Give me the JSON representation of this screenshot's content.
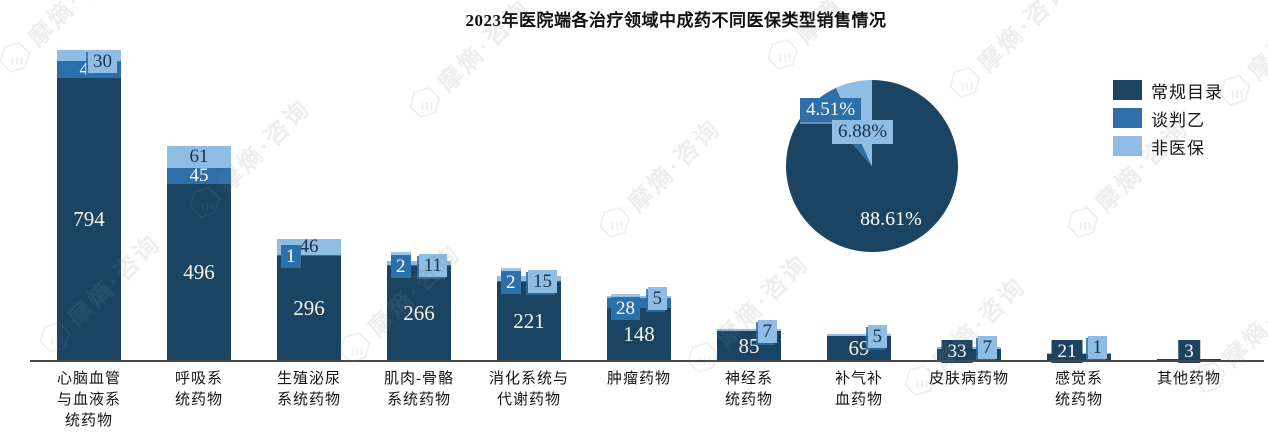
{
  "title": "2023年医院端各治疗领域中成药不同医保类型销售情况",
  "watermark": {
    "text": "摩熵·咨询"
  },
  "colors": {
    "regular": "#1a4462",
    "negotiated": "#2d6fa8",
    "non_insured": "#8fbde3",
    "dark_text": "#15314e",
    "axis": "#474747"
  },
  "legend": {
    "items": [
      {
        "label": "常规目录",
        "key": "regular"
      },
      {
        "label": "谈判乙",
        "key": "negotiated"
      },
      {
        "label": "非医保",
        "key": "non_insured"
      }
    ]
  },
  "pie_labels": {
    "main": "88.61%",
    "negotiated": "4.51%",
    "non_insured": "6.88%"
  },
  "chart_data": [
    {
      "type": "bar",
      "stacked": true,
      "title": "2023年医院端各治疗领域中成药不同医保类型销售情况",
      "categories": [
        "心脑血管与血液系统药物",
        "呼吸系统药物",
        "生殖泌尿系统药物",
        "肌肉-骨骼系统药物",
        "消化系统与代谢药物",
        "肿瘤药物",
        "神经系统药物",
        "补气补血药物",
        "皮肤病药物",
        "感觉系统药物",
        "其他药物"
      ],
      "category_lines": [
        [
          "心脑血管",
          "与血液系",
          "统药物"
        ],
        [
          "呼吸系",
          "统药物"
        ],
        [
          "生殖泌尿",
          "系统药物"
        ],
        [
          "肌肉-骨骼",
          "系统药物"
        ],
        [
          "消化系统与",
          "代谢药物"
        ],
        [
          "肿瘤药物"
        ],
        [
          "神经系",
          "统药物"
        ],
        [
          "补气补",
          "血药物"
        ],
        [
          "皮肤病药物"
        ],
        [
          "感觉系",
          "统药物"
        ],
        [
          "其他药物"
        ]
      ],
      "series": [
        {
          "name": "常规目录",
          "color": "#1a4462",
          "values": [
            794,
            496,
            296,
            266,
            221,
            148,
            85,
            69,
            33,
            21,
            3
          ]
        },
        {
          "name": "谈判乙",
          "color": "#2d6fa8",
          "values": [
            47,
            45,
            1,
            2,
            2,
            28,
            null,
            null,
            null,
            null,
            null
          ]
        },
        {
          "name": "非医保",
          "color": "#8fbde3",
          "values": [
            30,
            61,
            46,
            11,
            15,
            5,
            7,
            5,
            7,
            1,
            null
          ]
        }
      ],
      "ylim": [
        0,
        880
      ],
      "y_axis_visible": false,
      "grid": false,
      "legend_position": "right"
    },
    {
      "type": "pie",
      "labels": [
        "常规目录",
        "谈判乙",
        "非医保"
      ],
      "values": [
        88.61,
        4.51,
        6.88
      ],
      "value_labels": [
        "88.61%",
        "4.51%",
        "6.88%"
      ],
      "start_angle": "12-oclock",
      "direction": "clockwise"
    }
  ]
}
